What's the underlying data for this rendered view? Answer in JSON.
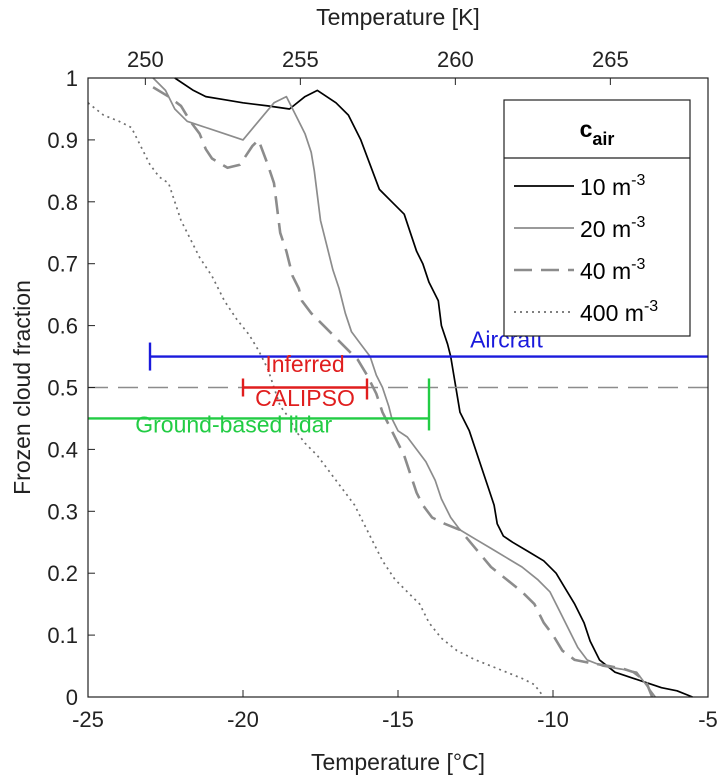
{
  "chart_data": {
    "type": "line",
    "xlabel": "Temperature [°C]",
    "ylabel": "Frozen cloud fraction",
    "x2label": "Temperature [K]",
    "xlim": [
      -25,
      -5
    ],
    "ylim": [
      0,
      1
    ],
    "x2lim": [
      248.15,
      268.15
    ],
    "xticks": [
      "-25",
      "-20",
      "-15",
      "-10",
      "-5"
    ],
    "yticks": [
      "0",
      "0.1",
      "0.2",
      "0.3",
      "0.4",
      "0.5",
      "0.6",
      "0.7",
      "0.8",
      "0.9",
      "1"
    ],
    "x2ticks": [
      "250",
      "255",
      "260",
      "265"
    ],
    "grid": false,
    "legend_title": "c",
    "legend_title_sub": "air",
    "legend_position": "top-right",
    "series": [
      {
        "name": "10 m",
        "name_sup": "-3",
        "color": "#000000",
        "dash": "solid",
        "points": [
          [
            -22.2,
            1.0
          ],
          [
            -21.6,
            0.98
          ],
          [
            -21.2,
            0.97
          ],
          [
            -20.6,
            0.965
          ],
          [
            -20.0,
            0.96
          ],
          [
            -19.2,
            0.955
          ],
          [
            -18.5,
            0.95
          ],
          [
            -18.0,
            0.97
          ],
          [
            -17.6,
            0.98
          ],
          [
            -17.0,
            0.96
          ],
          [
            -16.6,
            0.94
          ],
          [
            -16.2,
            0.9
          ],
          [
            -15.9,
            0.86
          ],
          [
            -15.6,
            0.82
          ],
          [
            -15.2,
            0.8
          ],
          [
            -14.8,
            0.78
          ],
          [
            -14.6,
            0.75
          ],
          [
            -14.4,
            0.72
          ],
          [
            -14.2,
            0.7
          ],
          [
            -14.0,
            0.67
          ],
          [
            -13.7,
            0.64
          ],
          [
            -13.6,
            0.6
          ],
          [
            -13.4,
            0.57
          ],
          [
            -13.3,
            0.55
          ],
          [
            -13.2,
            0.52
          ],
          [
            -13.1,
            0.49
          ],
          [
            -13.0,
            0.46
          ],
          [
            -12.7,
            0.43
          ],
          [
            -12.5,
            0.4
          ],
          [
            -12.3,
            0.37
          ],
          [
            -12.1,
            0.34
          ],
          [
            -11.9,
            0.31
          ],
          [
            -11.8,
            0.28
          ],
          [
            -11.6,
            0.26
          ],
          [
            -11.3,
            0.25
          ],
          [
            -10.8,
            0.235
          ],
          [
            -10.3,
            0.22
          ],
          [
            -9.9,
            0.2
          ],
          [
            -9.6,
            0.175
          ],
          [
            -9.3,
            0.15
          ],
          [
            -9.0,
            0.12
          ],
          [
            -8.8,
            0.09
          ],
          [
            -8.5,
            0.06
          ],
          [
            -8.0,
            0.04
          ],
          [
            -7.4,
            0.03
          ],
          [
            -6.8,
            0.02
          ],
          [
            -6.5,
            0.015
          ],
          [
            -6.0,
            0.01
          ],
          [
            -5.5,
            0.0
          ]
        ]
      },
      {
        "name": "20 m",
        "name_sup": "-3",
        "color": "#8c8c8c",
        "dash": "solid",
        "points": [
          [
            -22.9,
            1.0
          ],
          [
            -22.5,
            0.98
          ],
          [
            -22.2,
            0.95
          ],
          [
            -21.8,
            0.93
          ],
          [
            -21.2,
            0.92
          ],
          [
            -20.6,
            0.91
          ],
          [
            -20.0,
            0.9
          ],
          [
            -19.5,
            0.93
          ],
          [
            -19.0,
            0.96
          ],
          [
            -18.6,
            0.97
          ],
          [
            -18.3,
            0.94
          ],
          [
            -18.0,
            0.91
          ],
          [
            -17.8,
            0.88
          ],
          [
            -17.7,
            0.85
          ],
          [
            -17.6,
            0.81
          ],
          [
            -17.5,
            0.77
          ],
          [
            -17.3,
            0.73
          ],
          [
            -17.1,
            0.69
          ],
          [
            -16.9,
            0.66
          ],
          [
            -16.7,
            0.62
          ],
          [
            -16.5,
            0.59
          ],
          [
            -16.2,
            0.57
          ],
          [
            -15.9,
            0.55
          ],
          [
            -15.7,
            0.52
          ],
          [
            -15.5,
            0.5
          ],
          [
            -15.3,
            0.47
          ],
          [
            -15.2,
            0.45
          ],
          [
            -15.0,
            0.43
          ],
          [
            -14.7,
            0.42
          ],
          [
            -14.4,
            0.4
          ],
          [
            -14.1,
            0.38
          ],
          [
            -13.8,
            0.35
          ],
          [
            -13.6,
            0.32
          ],
          [
            -13.3,
            0.29
          ],
          [
            -13.0,
            0.27
          ],
          [
            -12.5,
            0.255
          ],
          [
            -12.0,
            0.24
          ],
          [
            -11.5,
            0.225
          ],
          [
            -11.0,
            0.21
          ],
          [
            -10.5,
            0.19
          ],
          [
            -10.1,
            0.17
          ],
          [
            -9.8,
            0.14
          ],
          [
            -9.5,
            0.11
          ],
          [
            -9.2,
            0.08
          ],
          [
            -8.9,
            0.06
          ],
          [
            -8.4,
            0.05
          ],
          [
            -7.8,
            0.045
          ],
          [
            -7.3,
            0.04
          ],
          [
            -7.0,
            0.02
          ],
          [
            -6.7,
            0.0
          ]
        ]
      },
      {
        "name": "40 m",
        "name_sup": "-3",
        "color": "#8c8c8c",
        "dash": "dashed",
        "points": [
          [
            -22.9,
            0.985
          ],
          [
            -22.4,
            0.97
          ],
          [
            -22.0,
            0.955
          ],
          [
            -21.7,
            0.93
          ],
          [
            -21.4,
            0.91
          ],
          [
            -21.2,
            0.885
          ],
          [
            -21.0,
            0.87
          ],
          [
            -20.5,
            0.855
          ],
          [
            -20.1,
            0.86
          ],
          [
            -19.7,
            0.89
          ],
          [
            -19.5,
            0.9
          ],
          [
            -19.2,
            0.86
          ],
          [
            -19.0,
            0.83
          ],
          [
            -18.9,
            0.79
          ],
          [
            -18.8,
            0.75
          ],
          [
            -18.6,
            0.72
          ],
          [
            -18.4,
            0.68
          ],
          [
            -18.2,
            0.66
          ],
          [
            -18.1,
            0.64
          ],
          [
            -17.8,
            0.62
          ],
          [
            -17.4,
            0.6
          ],
          [
            -17.0,
            0.58
          ],
          [
            -16.6,
            0.56
          ],
          [
            -16.3,
            0.545
          ],
          [
            -16.0,
            0.52
          ],
          [
            -15.7,
            0.49
          ],
          [
            -15.5,
            0.46
          ],
          [
            -15.2,
            0.43
          ],
          [
            -15.0,
            0.41
          ],
          [
            -14.8,
            0.39
          ],
          [
            -14.6,
            0.36
          ],
          [
            -14.4,
            0.33
          ],
          [
            -14.2,
            0.31
          ],
          [
            -13.9,
            0.29
          ],
          [
            -13.5,
            0.28
          ],
          [
            -13.0,
            0.27
          ],
          [
            -12.5,
            0.24
          ],
          [
            -12.0,
            0.21
          ],
          [
            -11.5,
            0.19
          ],
          [
            -11.0,
            0.17
          ],
          [
            -10.6,
            0.15
          ],
          [
            -10.3,
            0.12
          ],
          [
            -10.0,
            0.1
          ],
          [
            -9.7,
            0.075
          ],
          [
            -9.3,
            0.06
          ],
          [
            -8.8,
            0.055
          ],
          [
            -8.2,
            0.05
          ],
          [
            -7.7,
            0.045
          ],
          [
            -7.4,
            0.04
          ],
          [
            -7.0,
            0.025
          ],
          [
            -6.8,
            0.0
          ]
        ]
      },
      {
        "name": "400 m",
        "name_sup": "-3",
        "color": "#6f6f6f",
        "dash": "dotted",
        "points": [
          [
            -25.0,
            0.96
          ],
          [
            -24.5,
            0.94
          ],
          [
            -24.0,
            0.93
          ],
          [
            -23.6,
            0.92
          ],
          [
            -23.3,
            0.89
          ],
          [
            -23.0,
            0.86
          ],
          [
            -22.7,
            0.84
          ],
          [
            -22.4,
            0.83
          ],
          [
            -22.2,
            0.8
          ],
          [
            -22.0,
            0.77
          ],
          [
            -21.7,
            0.74
          ],
          [
            -21.4,
            0.71
          ],
          [
            -21.0,
            0.68
          ],
          [
            -20.6,
            0.64
          ],
          [
            -20.2,
            0.61
          ],
          [
            -19.8,
            0.585
          ],
          [
            -19.5,
            0.56
          ],
          [
            -19.2,
            0.53
          ],
          [
            -19.0,
            0.5
          ],
          [
            -18.8,
            0.47
          ],
          [
            -18.5,
            0.45
          ],
          [
            -18.3,
            0.43
          ],
          [
            -18.0,
            0.41
          ],
          [
            -17.6,
            0.39
          ],
          [
            -17.3,
            0.37
          ],
          [
            -17.0,
            0.35
          ],
          [
            -16.7,
            0.33
          ],
          [
            -16.4,
            0.31
          ],
          [
            -16.1,
            0.28
          ],
          [
            -15.8,
            0.25
          ],
          [
            -15.5,
            0.22
          ],
          [
            -15.1,
            0.19
          ],
          [
            -14.7,
            0.17
          ],
          [
            -14.3,
            0.15
          ],
          [
            -14.0,
            0.12
          ],
          [
            -13.6,
            0.095
          ],
          [
            -13.1,
            0.075
          ],
          [
            -12.5,
            0.06
          ],
          [
            -12.0,
            0.05
          ],
          [
            -11.5,
            0.04
          ],
          [
            -11.0,
            0.03
          ],
          [
            -10.6,
            0.02
          ],
          [
            -10.3,
            0.0
          ]
        ]
      }
    ],
    "reference_line": {
      "y": 0.5,
      "color": "#8c8c8c",
      "dash": "dashed"
    },
    "ranges": [
      {
        "label": "Aircraft",
        "color": "#1a1adc",
        "y": 0.55,
        "x_start": -23.0,
        "x_end": -5.0,
        "cap_start": true,
        "cap_end": false,
        "label_x": -11.5,
        "label_y": 0.565
      },
      {
        "label": "Inferred",
        "label2": "CALIPSO",
        "color": "#e01e1e",
        "y": 0.5,
        "x_start": -20.0,
        "x_end": -16.0,
        "cap_start": true,
        "cap_end": true,
        "label_x": -18.0,
        "label_y": 0.525,
        "label2_y": 0.47
      },
      {
        "label": "Ground-based lidar",
        "color": "#22cc44",
        "y": 0.45,
        "x_start": -25.0,
        "x_end": -14.0,
        "cap_start": false,
        "cap_end": true,
        "label_x": -20.3,
        "label_y": 0.427
      }
    ]
  }
}
